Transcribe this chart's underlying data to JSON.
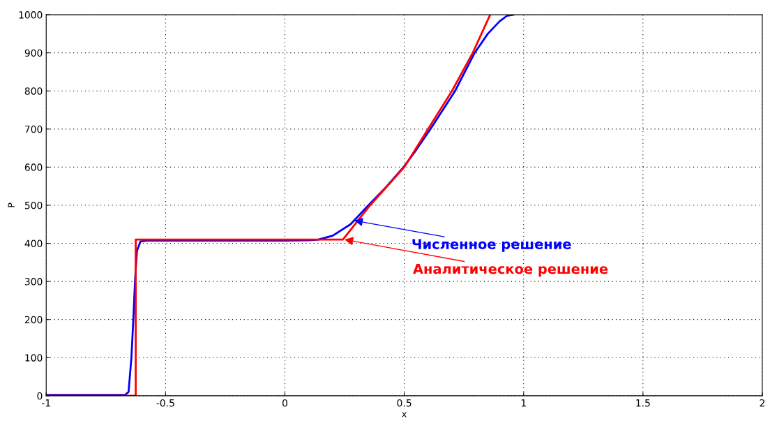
{
  "chart_data": {
    "type": "line",
    "xlabel": "x",
    "ylabel": "P",
    "xlim": [
      -1,
      2
    ],
    "xticks": [
      -1,
      -0.5,
      0,
      0.5,
      1,
      1.5,
      2
    ],
    "ylim": [
      0,
      1000
    ],
    "yticks": [
      0,
      100,
      200,
      300,
      400,
      500,
      600,
      700,
      800,
      900,
      1000
    ],
    "grid": true,
    "line_style": "solid",
    "marker": "none",
    "series": [
      {
        "color": "#0000ff",
        "x": [
          -1,
          -0.67,
          -0.655,
          -0.643,
          -0.635,
          -0.628,
          -0.62,
          -0.605,
          -0.58,
          0,
          0.1,
          0.14,
          0.2,
          0.275,
          0.35,
          0.42,
          0.497,
          0.55,
          0.61,
          0.713,
          0.795,
          0.85,
          0.9,
          0.93,
          0.957
        ],
        "values": [
          2,
          2,
          10,
          100,
          200,
          300,
          380,
          405,
          407,
          407,
          408,
          410,
          420,
          450,
          500,
          545,
          600,
          645,
          700,
          800,
          900,
          950,
          983,
          997,
          1000
        ]
      },
      {
        "color": "#ff0000",
        "x": [
          -1,
          -0.625,
          -0.625,
          0.243,
          0.357,
          0.5,
          0.6,
          0.7,
          0.787,
          0.86
        ],
        "values": [
          0,
          0,
          410,
          410,
          500,
          600,
          700,
          800,
          900,
          1000
        ]
      }
    ],
    "annotations": [
      {
        "text": "Численное решение",
        "x": 0.29,
        "y": 460
      },
      {
        "text": "Аналитическое решение",
        "x": 0.25,
        "y": 410
      }
    ]
  }
}
